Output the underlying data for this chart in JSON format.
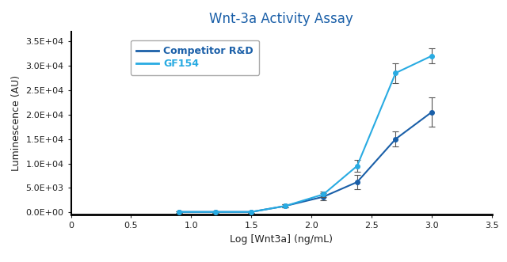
{
  "title": "Wnt-3a Activity Assay",
  "xlabel": "Log [Wnt3a] (ng/mL)",
  "ylabel": "Luminescence (AU)",
  "xlim": [
    0,
    3.5
  ],
  "ylim": [
    -500,
    37000
  ],
  "yticks": [
    0,
    5000,
    10000,
    15000,
    20000,
    25000,
    30000,
    35000
  ],
  "ytick_labels": [
    "0.0E+00",
    "5.0E+03",
    "1.0E+04",
    "1.5E+04",
    "2.0E+04",
    "2.5E+04",
    "3.0E+04",
    "3.5E+04"
  ],
  "xticks": [
    0,
    0.5,
    1.0,
    1.5,
    2.0,
    2.5,
    3.0,
    3.5
  ],
  "xtick_labels": [
    "0",
    "0.5",
    "1.0",
    "1.5",
    "2.0",
    "2.5",
    "3.0",
    "3.5"
  ],
  "competitor_x": [
    0.9,
    1.2,
    1.5,
    1.78,
    2.1,
    2.38,
    2.7,
    3.0
  ],
  "competitor_y": [
    100,
    100,
    100,
    1300,
    3200,
    6200,
    15000,
    20500
  ],
  "competitor_yerr": [
    150,
    150,
    150,
    300,
    700,
    1400,
    1500,
    3000
  ],
  "gf154_x": [
    0.9,
    1.2,
    1.5,
    1.78,
    2.1,
    2.38,
    2.7,
    3.0
  ],
  "gf154_y": [
    100,
    100,
    100,
    1300,
    3700,
    9500,
    28500,
    32000
  ],
  "gf154_yerr": [
    150,
    150,
    150,
    300,
    500,
    1200,
    2000,
    1500
  ],
  "competitor_color": "#1a5fa8",
  "gf154_color": "#29abe2",
  "title_color": "#1a5fa8",
  "legend_competitor_label": "Competitor R&D",
  "legend_gf154_label": "GF154",
  "background_color": "#ffffff",
  "markersize": 4,
  "linewidth": 1.5,
  "capsize": 3,
  "title_fontsize": 12,
  "axis_label_fontsize": 9,
  "tick_fontsize": 8,
  "legend_fontsize": 9
}
